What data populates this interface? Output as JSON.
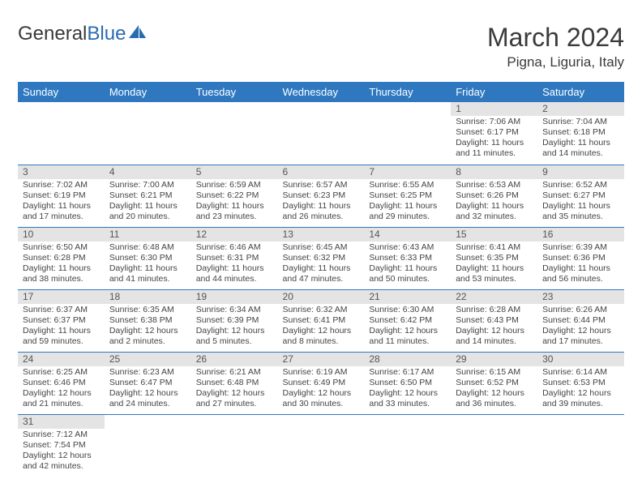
{
  "logo": {
    "part1": "General",
    "part2": "Blue"
  },
  "title": "March 2024",
  "location": "Pigna, Liguria, Italy",
  "colors": {
    "header_bg": "#2f78c0",
    "header_fg": "#ffffff",
    "daynum_bg": "#e4e4e4",
    "rule": "#2f78c0",
    "logo_blue": "#2a6bb0",
    "text": "#3a3a3a"
  },
  "font": {
    "title_size": 32,
    "location_size": 17,
    "th_size": 13,
    "daynum_size": 12,
    "body_size": 10.5
  },
  "weekdays": [
    "Sunday",
    "Monday",
    "Tuesday",
    "Wednesday",
    "Thursday",
    "Friday",
    "Saturday"
  ],
  "weeks": [
    [
      null,
      null,
      null,
      null,
      null,
      {
        "n": "1",
        "sr": "Sunrise: 7:06 AM",
        "ss": "Sunset: 6:17 PM",
        "dl": "Daylight: 11 hours and 11 minutes."
      },
      {
        "n": "2",
        "sr": "Sunrise: 7:04 AM",
        "ss": "Sunset: 6:18 PM",
        "dl": "Daylight: 11 hours and 14 minutes."
      }
    ],
    [
      {
        "n": "3",
        "sr": "Sunrise: 7:02 AM",
        "ss": "Sunset: 6:19 PM",
        "dl": "Daylight: 11 hours and 17 minutes."
      },
      {
        "n": "4",
        "sr": "Sunrise: 7:00 AM",
        "ss": "Sunset: 6:21 PM",
        "dl": "Daylight: 11 hours and 20 minutes."
      },
      {
        "n": "5",
        "sr": "Sunrise: 6:59 AM",
        "ss": "Sunset: 6:22 PM",
        "dl": "Daylight: 11 hours and 23 minutes."
      },
      {
        "n": "6",
        "sr": "Sunrise: 6:57 AM",
        "ss": "Sunset: 6:23 PM",
        "dl": "Daylight: 11 hours and 26 minutes."
      },
      {
        "n": "7",
        "sr": "Sunrise: 6:55 AM",
        "ss": "Sunset: 6:25 PM",
        "dl": "Daylight: 11 hours and 29 minutes."
      },
      {
        "n": "8",
        "sr": "Sunrise: 6:53 AM",
        "ss": "Sunset: 6:26 PM",
        "dl": "Daylight: 11 hours and 32 minutes."
      },
      {
        "n": "9",
        "sr": "Sunrise: 6:52 AM",
        "ss": "Sunset: 6:27 PM",
        "dl": "Daylight: 11 hours and 35 minutes."
      }
    ],
    [
      {
        "n": "10",
        "sr": "Sunrise: 6:50 AM",
        "ss": "Sunset: 6:28 PM",
        "dl": "Daylight: 11 hours and 38 minutes."
      },
      {
        "n": "11",
        "sr": "Sunrise: 6:48 AM",
        "ss": "Sunset: 6:30 PM",
        "dl": "Daylight: 11 hours and 41 minutes."
      },
      {
        "n": "12",
        "sr": "Sunrise: 6:46 AM",
        "ss": "Sunset: 6:31 PM",
        "dl": "Daylight: 11 hours and 44 minutes."
      },
      {
        "n": "13",
        "sr": "Sunrise: 6:45 AM",
        "ss": "Sunset: 6:32 PM",
        "dl": "Daylight: 11 hours and 47 minutes."
      },
      {
        "n": "14",
        "sr": "Sunrise: 6:43 AM",
        "ss": "Sunset: 6:33 PM",
        "dl": "Daylight: 11 hours and 50 minutes."
      },
      {
        "n": "15",
        "sr": "Sunrise: 6:41 AM",
        "ss": "Sunset: 6:35 PM",
        "dl": "Daylight: 11 hours and 53 minutes."
      },
      {
        "n": "16",
        "sr": "Sunrise: 6:39 AM",
        "ss": "Sunset: 6:36 PM",
        "dl": "Daylight: 11 hours and 56 minutes."
      }
    ],
    [
      {
        "n": "17",
        "sr": "Sunrise: 6:37 AM",
        "ss": "Sunset: 6:37 PM",
        "dl": "Daylight: 11 hours and 59 minutes."
      },
      {
        "n": "18",
        "sr": "Sunrise: 6:35 AM",
        "ss": "Sunset: 6:38 PM",
        "dl": "Daylight: 12 hours and 2 minutes."
      },
      {
        "n": "19",
        "sr": "Sunrise: 6:34 AM",
        "ss": "Sunset: 6:39 PM",
        "dl": "Daylight: 12 hours and 5 minutes."
      },
      {
        "n": "20",
        "sr": "Sunrise: 6:32 AM",
        "ss": "Sunset: 6:41 PM",
        "dl": "Daylight: 12 hours and 8 minutes."
      },
      {
        "n": "21",
        "sr": "Sunrise: 6:30 AM",
        "ss": "Sunset: 6:42 PM",
        "dl": "Daylight: 12 hours and 11 minutes."
      },
      {
        "n": "22",
        "sr": "Sunrise: 6:28 AM",
        "ss": "Sunset: 6:43 PM",
        "dl": "Daylight: 12 hours and 14 minutes."
      },
      {
        "n": "23",
        "sr": "Sunrise: 6:26 AM",
        "ss": "Sunset: 6:44 PM",
        "dl": "Daylight: 12 hours and 17 minutes."
      }
    ],
    [
      {
        "n": "24",
        "sr": "Sunrise: 6:25 AM",
        "ss": "Sunset: 6:46 PM",
        "dl": "Daylight: 12 hours and 21 minutes."
      },
      {
        "n": "25",
        "sr": "Sunrise: 6:23 AM",
        "ss": "Sunset: 6:47 PM",
        "dl": "Daylight: 12 hours and 24 minutes."
      },
      {
        "n": "26",
        "sr": "Sunrise: 6:21 AM",
        "ss": "Sunset: 6:48 PM",
        "dl": "Daylight: 12 hours and 27 minutes."
      },
      {
        "n": "27",
        "sr": "Sunrise: 6:19 AM",
        "ss": "Sunset: 6:49 PM",
        "dl": "Daylight: 12 hours and 30 minutes."
      },
      {
        "n": "28",
        "sr": "Sunrise: 6:17 AM",
        "ss": "Sunset: 6:50 PM",
        "dl": "Daylight: 12 hours and 33 minutes."
      },
      {
        "n": "29",
        "sr": "Sunrise: 6:15 AM",
        "ss": "Sunset: 6:52 PM",
        "dl": "Daylight: 12 hours and 36 minutes."
      },
      {
        "n": "30",
        "sr": "Sunrise: 6:14 AM",
        "ss": "Sunset: 6:53 PM",
        "dl": "Daylight: 12 hours and 39 minutes."
      }
    ],
    [
      {
        "n": "31",
        "sr": "Sunrise: 7:12 AM",
        "ss": "Sunset: 7:54 PM",
        "dl": "Daylight: 12 hours and 42 minutes."
      },
      null,
      null,
      null,
      null,
      null,
      null
    ]
  ]
}
